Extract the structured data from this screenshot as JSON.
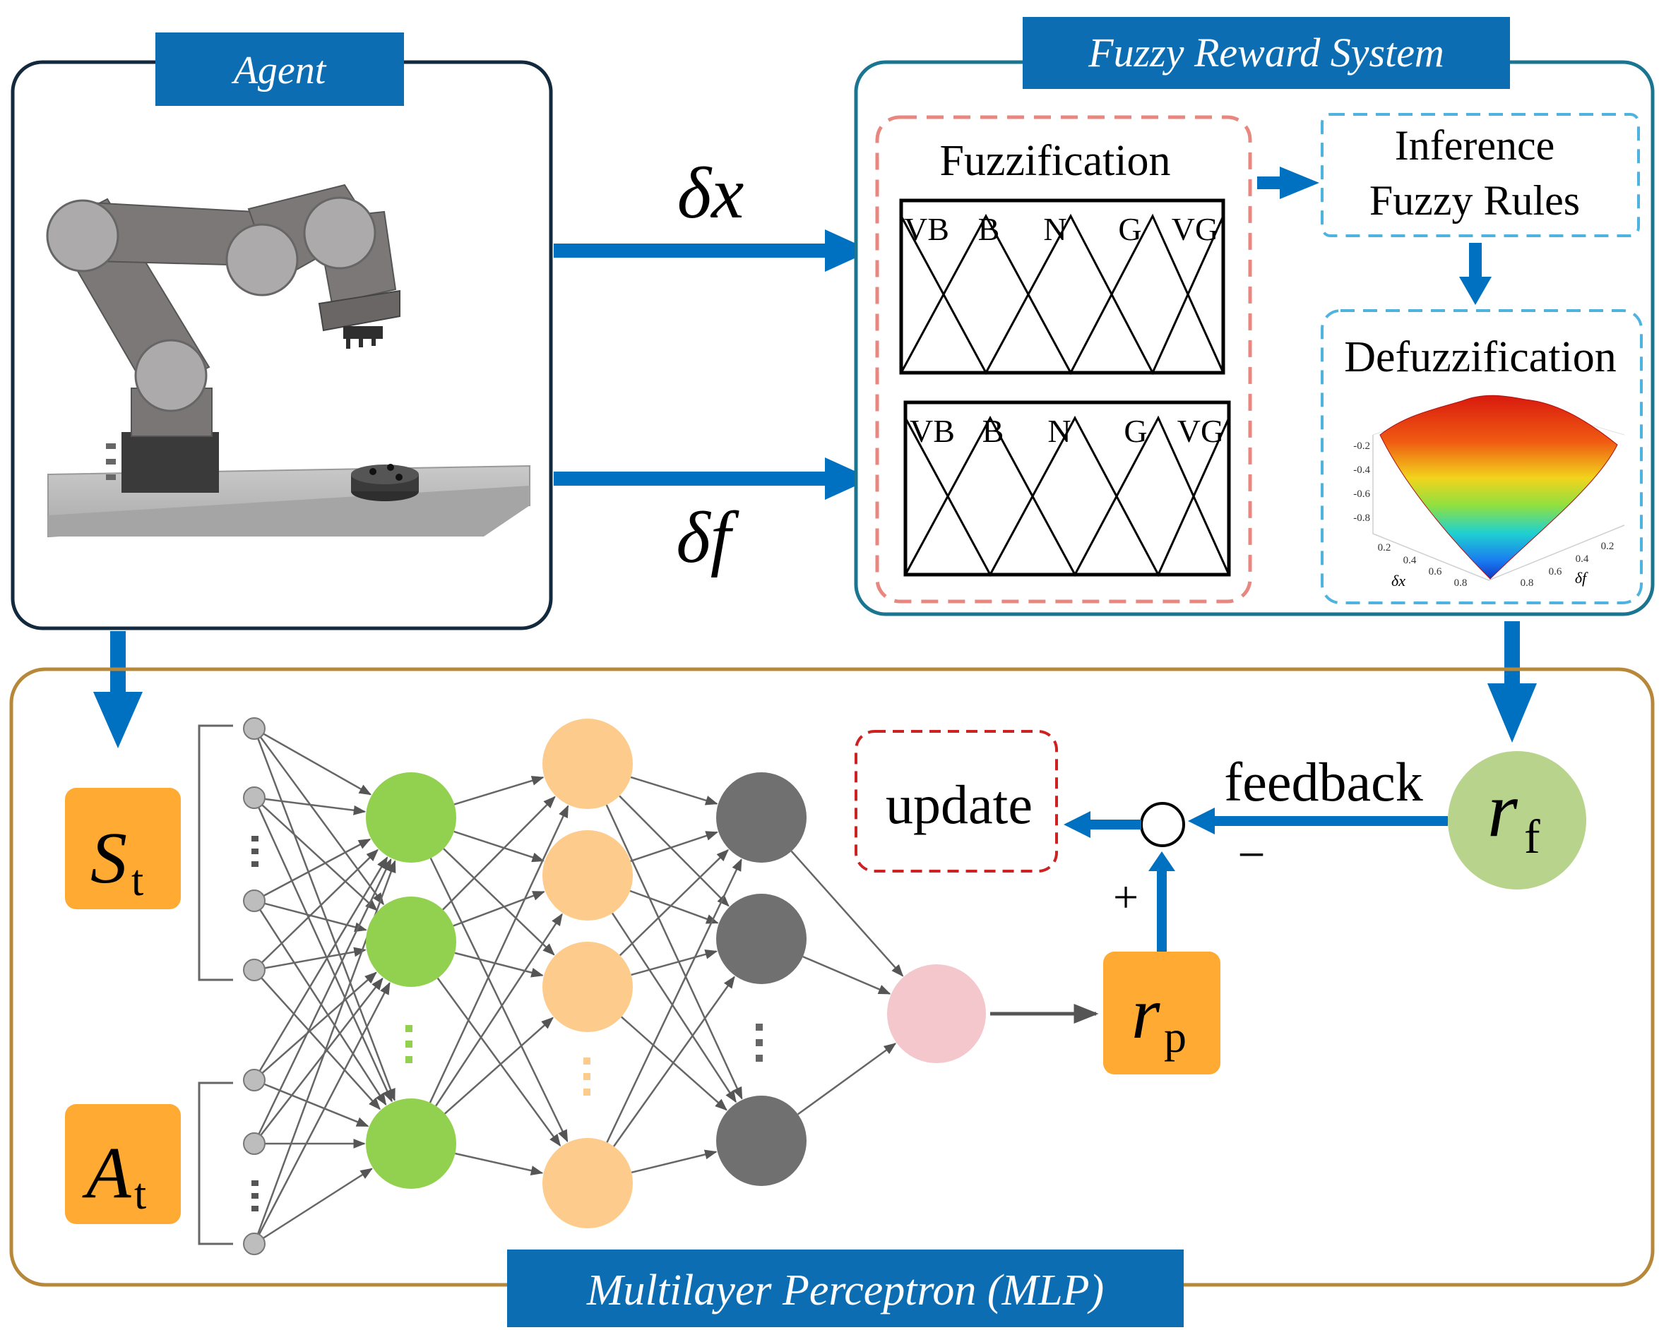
{
  "headers": {
    "agent": "Agent",
    "fuzzy": "Fuzzy Reward System",
    "mlp": "Multilayer Perceptron (MLP)"
  },
  "signals": {
    "dx": "δx",
    "df": "δf"
  },
  "fuzzification": {
    "title": "Fuzzification",
    "sets_top": [
      "VB",
      "B",
      "N",
      "G",
      "VG"
    ],
    "sets_bottom": [
      "VB",
      "B",
      "N",
      "G",
      "VG"
    ]
  },
  "inference": {
    "line1": "Inference",
    "line2": "Fuzzy Rules"
  },
  "defuzzification": {
    "title": "Defuzzification",
    "z_ticks": [
      "-0.2",
      "-0.4",
      "-0.6",
      "-0.8"
    ],
    "x_ticks": [
      "0.2",
      "0.4",
      "0.6",
      "0.8"
    ],
    "y_ticks": [
      "0.8",
      "0.6",
      "0.4",
      "0.2"
    ],
    "x_label": "δx",
    "y_label": "δf"
  },
  "mlp": {
    "state": "S",
    "action": "A",
    "sub_t": "t",
    "r_pred": "r",
    "sub_p": "p",
    "r_fuzzy": "r",
    "sub_f": "f",
    "feedback": "feedback",
    "update": "update",
    "plus": "+",
    "minus": "−"
  },
  "colors": {
    "accent_blue": "#0070c0",
    "header_blue": "#0c6db3",
    "agent_border": "#13293d",
    "fuzzy_border": "#1a7591",
    "mlp_border": "#b8883a",
    "fuzzification_dash": "#e8877f",
    "inference_dash": "#4fb3e0",
    "orange_box": "#ffaa33",
    "green_node": "#92d050",
    "peach_node": "#fdcb8c",
    "gray_node": "#707070",
    "pink_node": "#f3c7cb",
    "rf_node": "#b8d48c"
  }
}
